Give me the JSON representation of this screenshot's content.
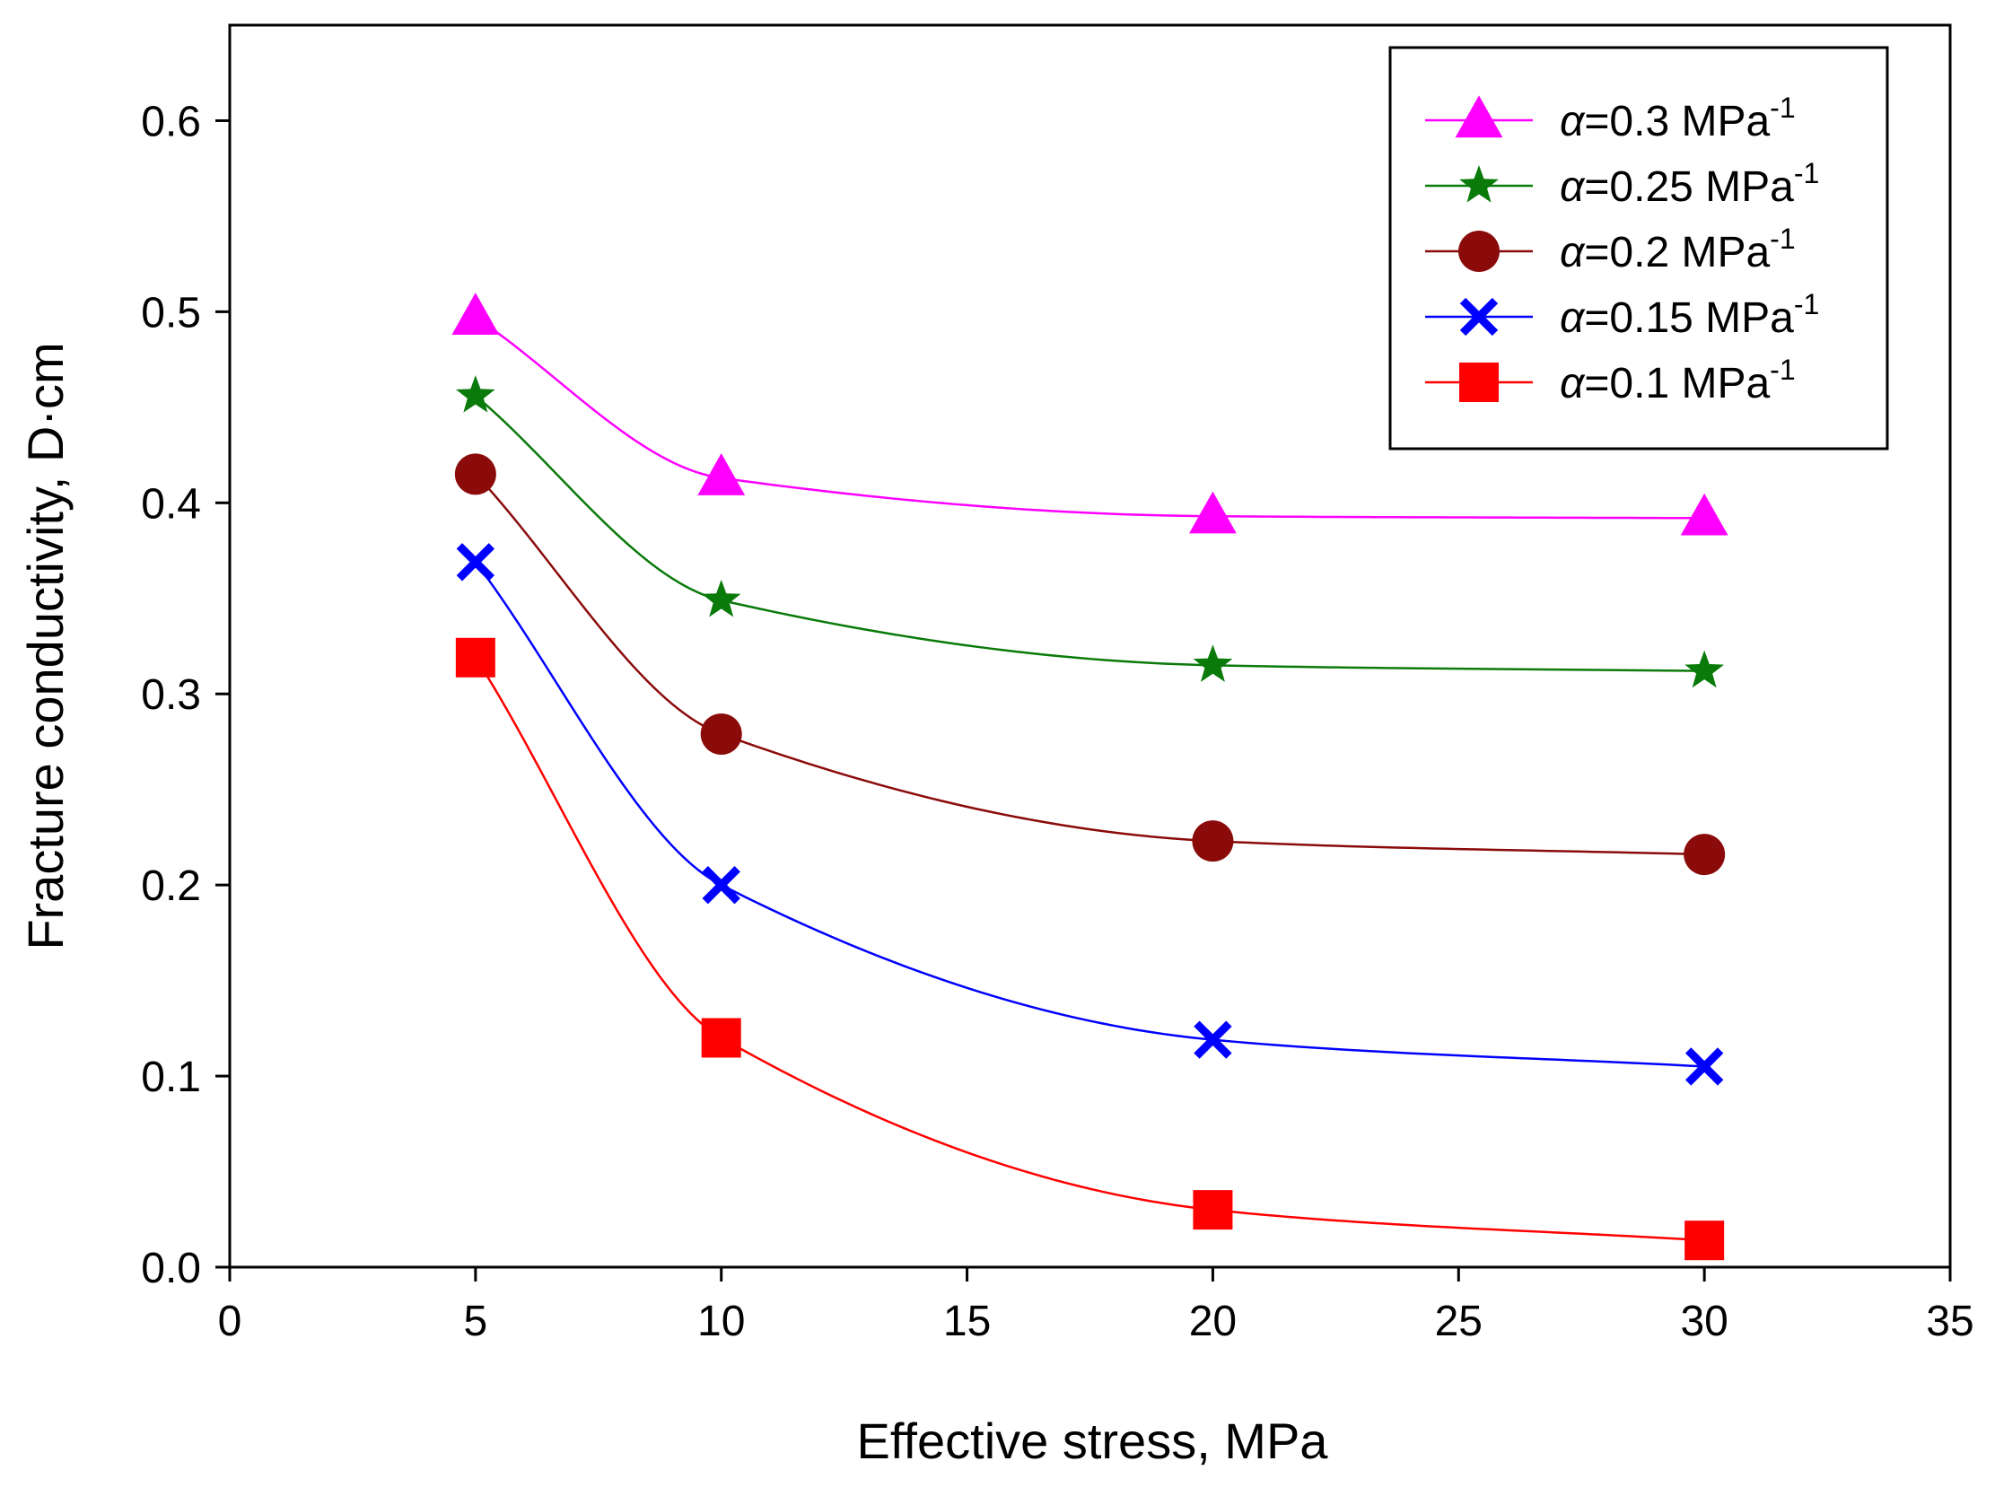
{
  "chart_data": {
    "type": "line",
    "title": "",
    "xlabel": "Effective stress, MPa",
    "ylabel": "Fracture conductivity, D·cm",
    "xlim": [
      0,
      35
    ],
    "ylim": [
      0,
      0.65
    ],
    "grid": false,
    "legend_position": "top-right",
    "x_ticks": [
      0,
      5,
      10,
      15,
      20,
      25,
      30,
      35
    ],
    "x_tick_labels": [
      "0",
      "5",
      "10",
      "15",
      "20",
      "25",
      "30",
      "35"
    ],
    "y_ticks": [
      0.0,
      0.1,
      0.2,
      0.3,
      0.4,
      0.5,
      0.6
    ],
    "y_tick_labels": [
      "0.0",
      "0.1",
      "0.2",
      "0.3",
      "0.4",
      "0.5",
      "0.6"
    ],
    "x": [
      5,
      10,
      20,
      30
    ],
    "series": [
      {
        "name": "α=0.3 MPa-1",
        "alpha_symbol": "α",
        "label_main": "=0.3 MPa",
        "label_sup": "-1",
        "marker": "triangle",
        "color": "#ff00ff",
        "values": [
          0.497,
          0.413,
          0.393,
          0.392
        ]
      },
      {
        "name": "α=0.25 MPa-1",
        "alpha_symbol": "α",
        "label_main": "=0.25 MPa",
        "label_sup": "-1",
        "marker": "star",
        "color": "#0a7a0a",
        "values": [
          0.456,
          0.349,
          0.315,
          0.312
        ]
      },
      {
        "name": "α=0.2 MPa-1",
        "alpha_symbol": "α",
        "label_main": "=0.2 MPa",
        "label_sup": "-1",
        "marker": "circle",
        "color": "#8b0a0a",
        "values": [
          0.415,
          0.279,
          0.223,
          0.216
        ]
      },
      {
        "name": "α=0.15 MPa-1",
        "alpha_symbol": "α",
        "label_main": "=0.15 MPa",
        "label_sup": "-1",
        "marker": "cross",
        "color": "#0000ff",
        "values": [
          0.369,
          0.2,
          0.119,
          0.105
        ]
      },
      {
        "name": "α=0.1 MPa-1",
        "alpha_symbol": "α",
        "label_main": "=0.1 MPa",
        "label_sup": "-1",
        "marker": "square",
        "color": "#ff0000",
        "values": [
          0.319,
          0.12,
          0.03,
          0.014
        ]
      }
    ]
  }
}
